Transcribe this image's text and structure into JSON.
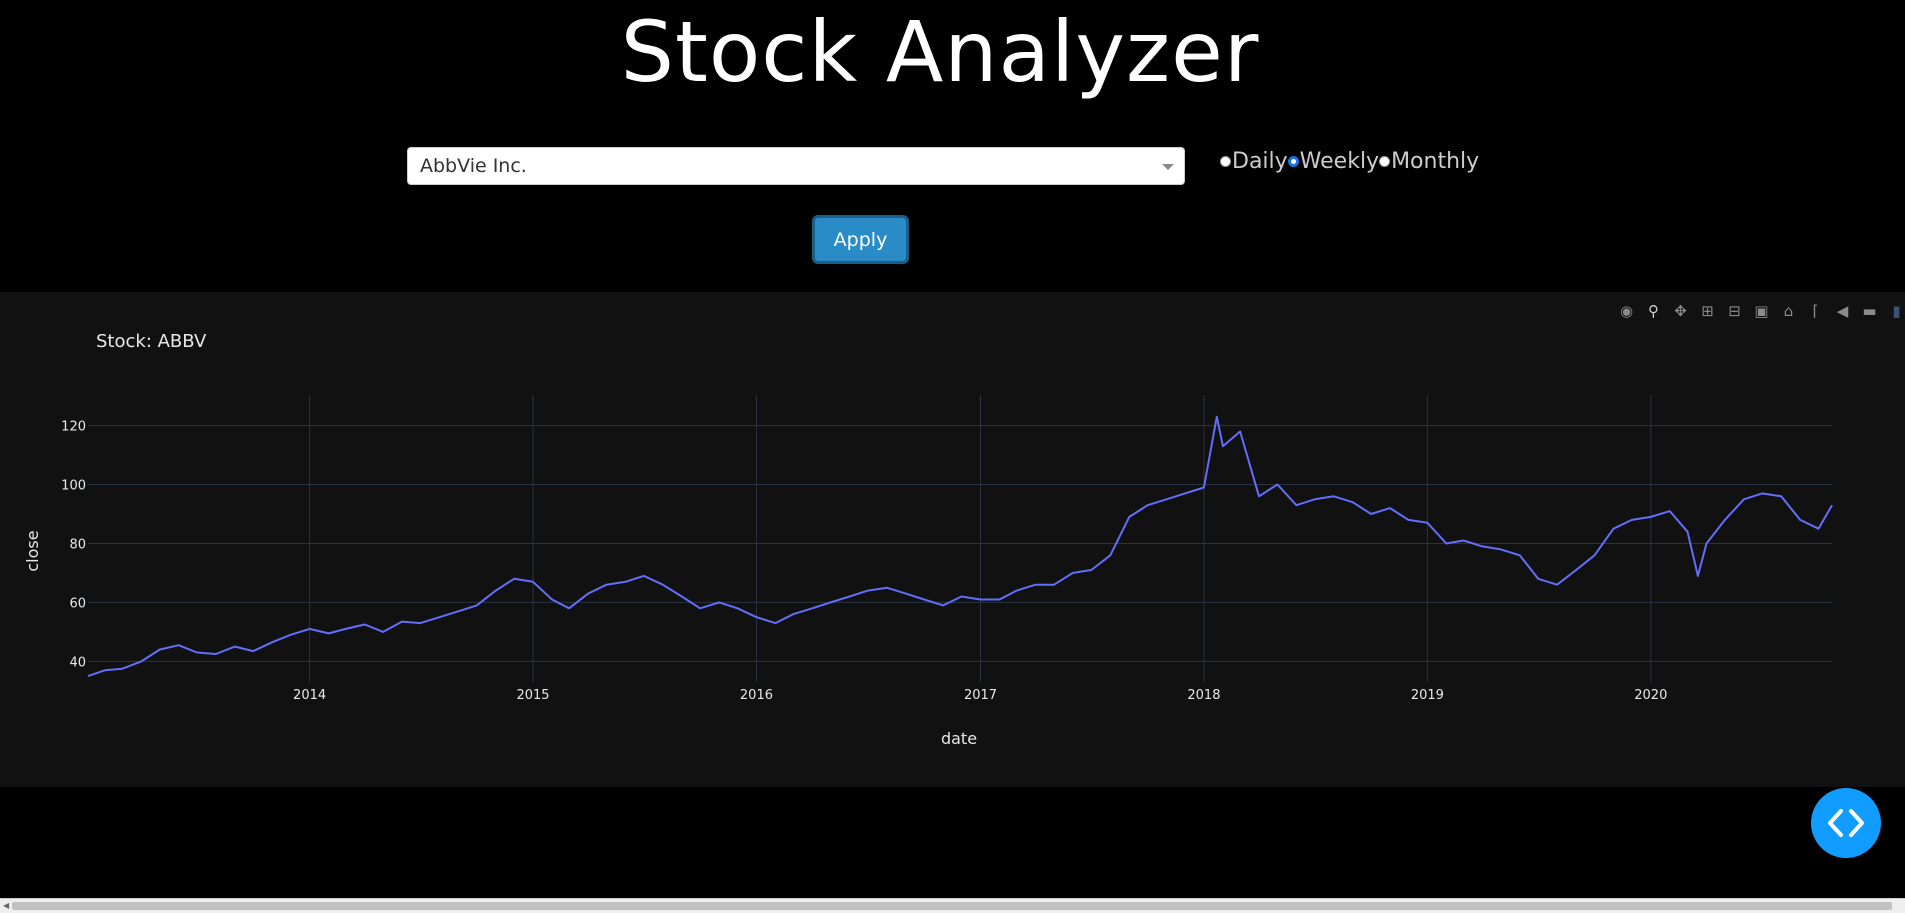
{
  "header": {
    "title": "Stock Analyzer"
  },
  "controls": {
    "stock_select_value": "AbbVie Inc.",
    "frequency_options": [
      {
        "label": "Daily",
        "selected": false
      },
      {
        "label": "Weekly",
        "selected": true
      },
      {
        "label": "Monthly",
        "selected": false
      }
    ],
    "apply_label": "Apply"
  },
  "modebar_icons": [
    "camera-icon",
    "zoom-icon",
    "pan-icon",
    "zoom-in-icon",
    "zoom-out-icon",
    "autoscale-icon",
    "reset-axes-icon",
    "spike-lines-icon",
    "hover-closest-icon",
    "hover-compare-icon",
    "plotly-logo-icon"
  ],
  "colors": {
    "line": "#636efa",
    "plot_bg": "#111111",
    "grid": "#283442",
    "accent": "#119dff",
    "apply": "#2a8cc7"
  },
  "chart_data": {
    "type": "line",
    "title": "Stock: ABBV",
    "xlabel": "date",
    "ylabel": "close",
    "xlim": [
      "2013-01-04",
      "2020-10-23"
    ],
    "ylim": [
      33,
      128
    ],
    "x_ticks": [
      "2014",
      "2015",
      "2016",
      "2017",
      "2018",
      "2019",
      "2020"
    ],
    "y_ticks": [
      40,
      60,
      80,
      100,
      120
    ],
    "grid": true,
    "series": [
      {
        "name": "",
        "points": [
          [
            "2013-01-04",
            35
          ],
          [
            "2013-02-01",
            37
          ],
          [
            "2013-03-01",
            37.5
          ],
          [
            "2013-04-01",
            40
          ],
          [
            "2013-05-01",
            44
          ],
          [
            "2013-06-01",
            45.5
          ],
          [
            "2013-07-01",
            43
          ],
          [
            "2013-08-01",
            42.5
          ],
          [
            "2013-09-01",
            45
          ],
          [
            "2013-10-01",
            43.5
          ],
          [
            "2013-11-01",
            46.5
          ],
          [
            "2013-12-01",
            49
          ],
          [
            "2014-01-01",
            51
          ],
          [
            "2014-02-01",
            49.5
          ],
          [
            "2014-03-01",
            51
          ],
          [
            "2014-04-01",
            52.5
          ],
          [
            "2014-05-01",
            50
          ],
          [
            "2014-06-01",
            53.5
          ],
          [
            "2014-07-01",
            53
          ],
          [
            "2014-08-01",
            55
          ],
          [
            "2014-09-01",
            57
          ],
          [
            "2014-10-01",
            59
          ],
          [
            "2014-11-01",
            64
          ],
          [
            "2014-12-01",
            68
          ],
          [
            "2015-01-01",
            67
          ],
          [
            "2015-02-01",
            61
          ],
          [
            "2015-03-01",
            58
          ],
          [
            "2015-04-01",
            63
          ],
          [
            "2015-05-01",
            66
          ],
          [
            "2015-06-01",
            67
          ],
          [
            "2015-07-01",
            69
          ],
          [
            "2015-08-01",
            66
          ],
          [
            "2015-09-01",
            62
          ],
          [
            "2015-10-01",
            58
          ],
          [
            "2015-11-01",
            60
          ],
          [
            "2015-12-01",
            58
          ],
          [
            "2016-01-01",
            55
          ],
          [
            "2016-02-01",
            53
          ],
          [
            "2016-03-01",
            56
          ],
          [
            "2016-04-01",
            58
          ],
          [
            "2016-05-01",
            60
          ],
          [
            "2016-06-01",
            62
          ],
          [
            "2016-07-01",
            64
          ],
          [
            "2016-08-01",
            65
          ],
          [
            "2016-09-01",
            63
          ],
          [
            "2016-10-01",
            61
          ],
          [
            "2016-11-01",
            59
          ],
          [
            "2016-12-01",
            62
          ],
          [
            "2017-01-01",
            61
          ],
          [
            "2017-02-01",
            61
          ],
          [
            "2017-03-01",
            64
          ],
          [
            "2017-04-01",
            66
          ],
          [
            "2017-05-01",
            66
          ],
          [
            "2017-06-01",
            70
          ],
          [
            "2017-07-01",
            71
          ],
          [
            "2017-08-01",
            76
          ],
          [
            "2017-09-01",
            89
          ],
          [
            "2017-10-01",
            93
          ],
          [
            "2017-11-01",
            95
          ],
          [
            "2017-12-01",
            97
          ],
          [
            "2018-01-01",
            99
          ],
          [
            "2018-01-22",
            123
          ],
          [
            "2018-02-01",
            113
          ],
          [
            "2018-03-01",
            118
          ],
          [
            "2018-04-01",
            96
          ],
          [
            "2018-05-01",
            100
          ],
          [
            "2018-06-01",
            93
          ],
          [
            "2018-07-01",
            95
          ],
          [
            "2018-08-01",
            96
          ],
          [
            "2018-09-01",
            94
          ],
          [
            "2018-10-01",
            90
          ],
          [
            "2018-11-01",
            92
          ],
          [
            "2018-12-01",
            88
          ],
          [
            "2019-01-01",
            87
          ],
          [
            "2019-02-01",
            80
          ],
          [
            "2019-03-01",
            81
          ],
          [
            "2019-04-01",
            79
          ],
          [
            "2019-05-01",
            78
          ],
          [
            "2019-06-01",
            76
          ],
          [
            "2019-07-01",
            68
          ],
          [
            "2019-08-01",
            66
          ],
          [
            "2019-09-01",
            71
          ],
          [
            "2019-10-01",
            76
          ],
          [
            "2019-11-01",
            85
          ],
          [
            "2019-12-01",
            88
          ],
          [
            "2020-01-01",
            89
          ],
          [
            "2020-02-01",
            91
          ],
          [
            "2020-03-01",
            84
          ],
          [
            "2020-03-18",
            69
          ],
          [
            "2020-04-01",
            80
          ],
          [
            "2020-05-01",
            88
          ],
          [
            "2020-06-01",
            95
          ],
          [
            "2020-07-01",
            97
          ],
          [
            "2020-08-01",
            96
          ],
          [
            "2020-09-01",
            88
          ],
          [
            "2020-10-01",
            85
          ],
          [
            "2020-10-23",
            93
          ]
        ]
      }
    ]
  }
}
